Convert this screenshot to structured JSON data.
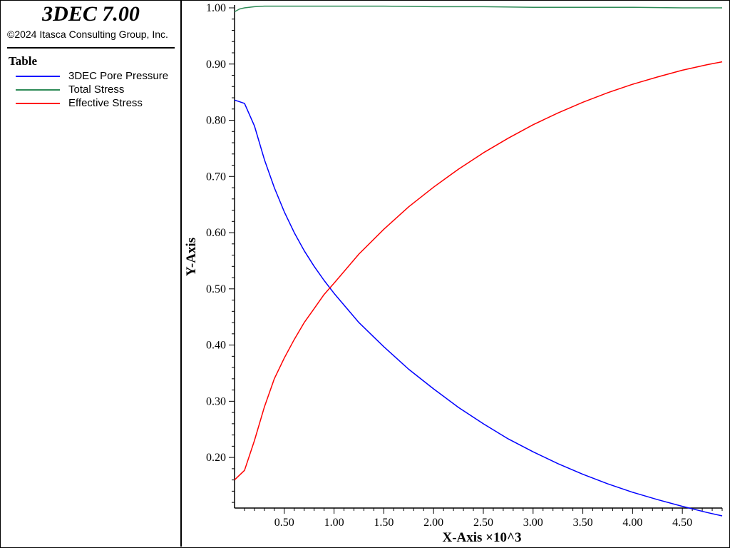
{
  "app": {
    "title": "3DEC 7.00",
    "copyright": "©2024 Itasca Consulting Group, Inc."
  },
  "legend": {
    "heading": "Table",
    "items": [
      {
        "label": "3DEC Pore Pressure",
        "color": "#0000ff"
      },
      {
        "label": "Total Stress",
        "color": "#2e8b57"
      },
      {
        "label": "Effective Stress",
        "color": "#ff0000"
      }
    ]
  },
  "chart_data": {
    "type": "line",
    "xlabel": "X-Axis ×10^3",
    "ylabel": "Y-Axis",
    "xlim": [
      0,
      4.9
    ],
    "ylim": [
      0.11,
      1.0
    ],
    "x_ticks": [
      "0.50",
      "1.00",
      "1.50",
      "2.00",
      "2.50",
      "3.00",
      "3.50",
      "4.00",
      "4.50"
    ],
    "y_ticks": [
      "0.20",
      "0.30",
      "0.40",
      "0.50",
      "0.60",
      "0.70",
      "0.80",
      "0.90",
      "1.00"
    ],
    "grid": false,
    "series": [
      {
        "name": "3DEC Pore Pressure",
        "color": "#0000ff",
        "x": [
          0,
          0.1,
          0.2,
          0.3,
          0.4,
          0.5,
          0.6,
          0.7,
          0.8,
          0.9,
          1.0,
          1.25,
          1.5,
          1.75,
          2.0,
          2.25,
          2.5,
          2.75,
          3.0,
          3.25,
          3.5,
          3.75,
          4.0,
          4.25,
          4.5,
          4.75,
          4.9
        ],
        "y": [
          0.836,
          0.83,
          0.79,
          0.73,
          0.68,
          0.637,
          0.6,
          0.568,
          0.54,
          0.515,
          0.492,
          0.44,
          0.397,
          0.357,
          0.322,
          0.289,
          0.26,
          0.233,
          0.21,
          0.189,
          0.17,
          0.153,
          0.138,
          0.125,
          0.113,
          0.102,
          0.096
        ]
      },
      {
        "name": "Total Stress",
        "color": "#2e8b57",
        "x": [
          0,
          0.05,
          0.1,
          0.2,
          0.3,
          0.5,
          1.0,
          1.5,
          2.0,
          2.5,
          3.0,
          3.5,
          4.0,
          4.5,
          4.9
        ],
        "y": [
          0.993,
          0.998,
          1.0,
          1.002,
          1.003,
          1.003,
          1.003,
          1.003,
          1.002,
          1.002,
          1.001,
          1.001,
          1.001,
          1.0,
          1.0
        ]
      },
      {
        "name": "Effective Stress",
        "color": "#ff0000",
        "x": [
          0,
          0.1,
          0.2,
          0.3,
          0.4,
          0.5,
          0.6,
          0.7,
          0.8,
          0.9,
          1.0,
          1.25,
          1.5,
          1.75,
          2.0,
          2.25,
          2.5,
          2.75,
          3.0,
          3.25,
          3.5,
          3.75,
          4.0,
          4.25,
          4.5,
          4.75,
          4.9
        ],
        "y": [
          0.16,
          0.177,
          0.23,
          0.29,
          0.34,
          0.377,
          0.41,
          0.44,
          0.465,
          0.49,
          0.51,
          0.562,
          0.606,
          0.646,
          0.681,
          0.713,
          0.742,
          0.768,
          0.792,
          0.813,
          0.832,
          0.849,
          0.864,
          0.877,
          0.889,
          0.899,
          0.904
        ]
      }
    ]
  }
}
